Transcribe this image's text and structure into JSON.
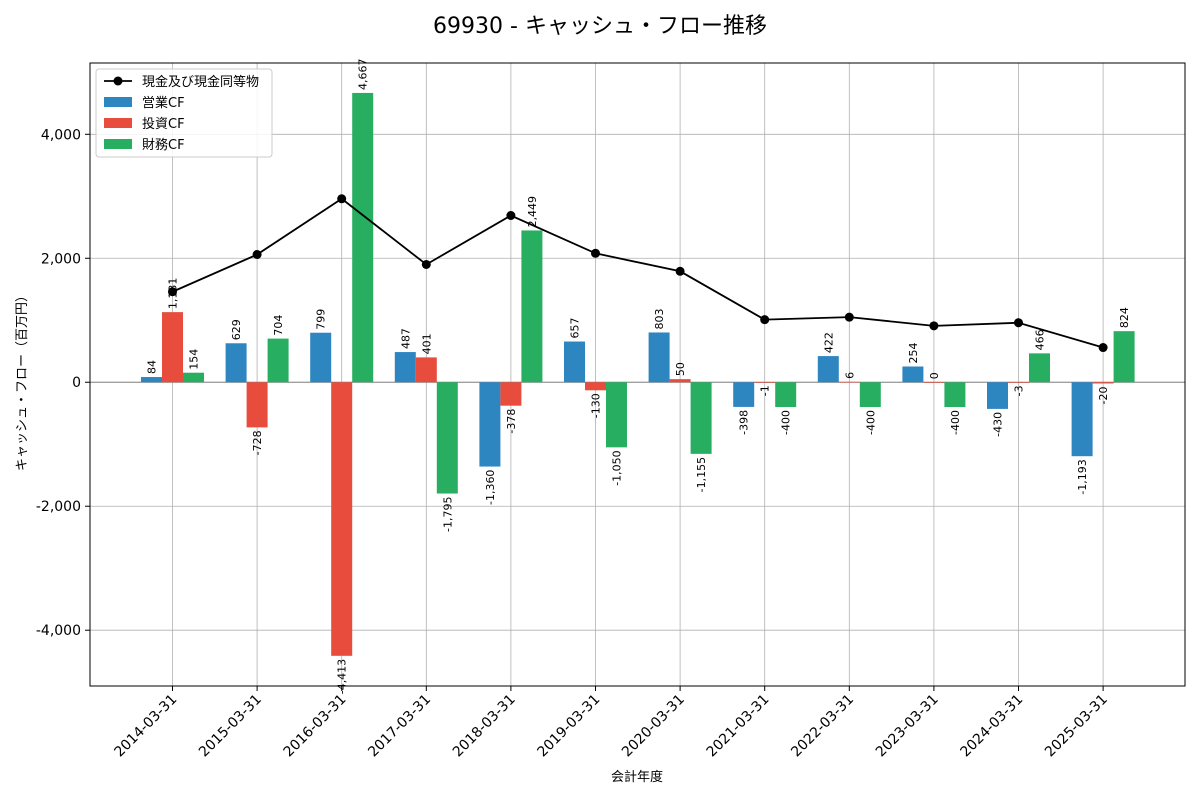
{
  "chart_data": {
    "type": "bar",
    "title": "69930 - キャッシュ・フロー推移",
    "xlabel": "会計年度",
    "ylabel": "キャッシュ・フロー（百万円）",
    "ylim": [
      -4900,
      5150
    ],
    "yticks": [
      -4000,
      -2000,
      0,
      2000,
      4000
    ],
    "ytick_labels": [
      "-4,000",
      "-2,000",
      "0",
      "2,000",
      "4,000"
    ],
    "grid": true,
    "legend_position": "top-left",
    "categories": [
      "2014-03-31",
      "2015-03-31",
      "2016-03-31",
      "2017-03-31",
      "2018-03-31",
      "2019-03-31",
      "2020-03-31",
      "2021-03-31",
      "2022-03-31",
      "2023-03-31",
      "2024-03-31",
      "2025-03-31"
    ],
    "series": [
      {
        "name": "営業CF",
        "kind": "bar",
        "color": "#2e86c1",
        "values": [
          84,
          629,
          799,
          487,
          -1360,
          657,
          803,
          -398,
          422,
          254,
          -430,
          -1193
        ],
        "labels": [
          "84",
          "629",
          "799",
          "487",
          "-1,360",
          "657",
          "803",
          "-398",
          "422",
          "254",
          "-430",
          "-1,193"
        ]
      },
      {
        "name": "投資CF",
        "kind": "bar",
        "color": "#e74c3c",
        "values": [
          1131,
          -728,
          -4413,
          401,
          -378,
          -130,
          50,
          -1,
          6,
          0,
          -3,
          -20
        ],
        "labels": [
          "1,131",
          "-728",
          "-4,413",
          "401",
          "-378",
          "-130",
          "50",
          "-1",
          "6",
          "0",
          "-3",
          "-20"
        ]
      },
      {
        "name": "財務CF",
        "kind": "bar",
        "color": "#27ae60",
        "values": [
          154,
          704,
          4667,
          -1795,
          2449,
          -1050,
          -1155,
          -400,
          -400,
          -400,
          466,
          824
        ],
        "labels": [
          "154",
          "704",
          "4,667",
          "-1,795",
          "2,449",
          "-1,050",
          "-1,155",
          "-400",
          "-400",
          "-400",
          "466",
          "824"
        ]
      },
      {
        "name": "現金及び現金同等物",
        "kind": "line",
        "color": "#000000",
        "values": [
          1460,
          2060,
          2960,
          1900,
          2690,
          2080,
          1790,
          1010,
          1050,
          910,
          960,
          560
        ]
      }
    ]
  }
}
